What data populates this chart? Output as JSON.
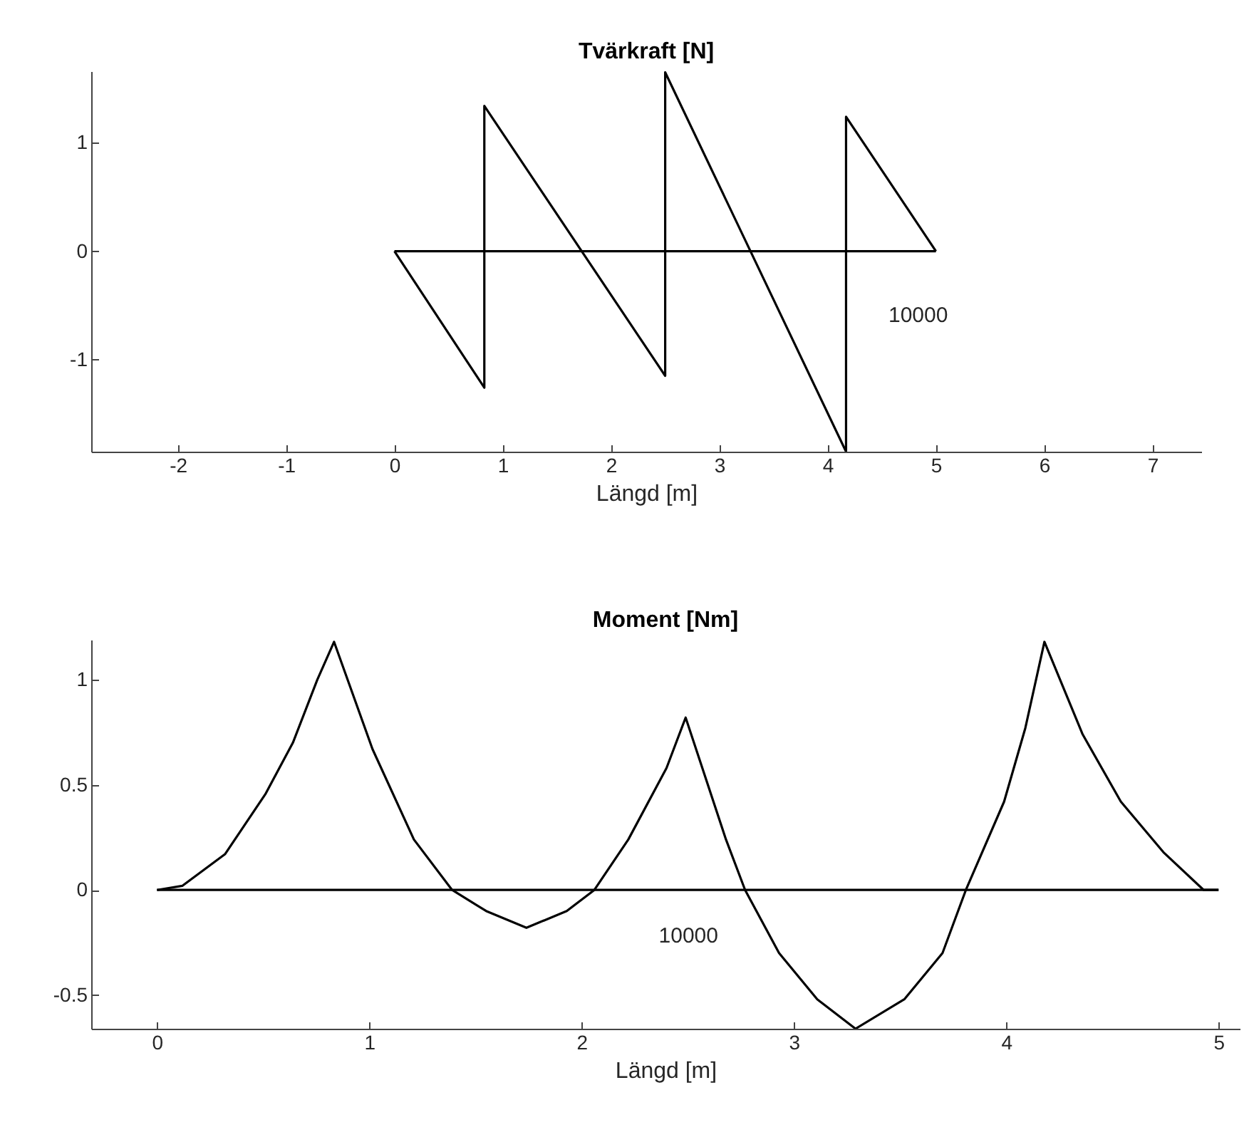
{
  "chart_data": [
    {
      "type": "line",
      "title": "Tvärkraft [N]",
      "xlabel": "Längd [m]",
      "xlim": [
        -2.8,
        7.45
      ],
      "xticks": [
        -2,
        -1,
        0,
        1,
        2,
        3,
        4,
        5,
        6,
        7
      ],
      "ylim": [
        -1.85,
        1.66
      ],
      "yticks": [
        -1,
        0,
        1
      ],
      "grid": false,
      "series": [
        {
          "color": "#000000",
          "x": [
            0,
            0.83,
            0.83,
            2.5,
            2.5,
            4.17,
            4.17,
            5
          ],
          "values": [
            0,
            -1.26,
            1.34,
            -1.15,
            1.65,
            -1.85,
            1.24,
            0
          ]
        },
        {
          "color": "#000000",
          "x": [
            0,
            5
          ],
          "values": [
            0,
            0
          ]
        }
      ],
      "annotations": [
        "10000"
      ]
    },
    {
      "type": "line",
      "title": "Moment [Nm]",
      "xlabel": "Längd [m]",
      "xlim": [
        -0.31,
        5.1
      ],
      "xticks": [
        0,
        1,
        2,
        3,
        4,
        5
      ],
      "ylim": [
        -0.66,
        1.19
      ],
      "yticks": [
        -0.5,
        0,
        0.5,
        1
      ],
      "grid": false,
      "series": [
        {
          "color": "#000000",
          "x": [
            0,
            0.12,
            0.32,
            0.51,
            0.64,
            0.755,
            0.834,
            1.015,
            1.21,
            1.39,
            1.55,
            1.74,
            1.93,
            2.06,
            2.22,
            2.4,
            2.49,
            2.68,
            2.77,
            2.93,
            3.11,
            3.29,
            3.52,
            3.7,
            3.81,
            3.99,
            4.09,
            4.18,
            4.36,
            4.54,
            4.74,
            4.93,
            5
          ],
          "values": [
            0,
            0.02,
            0.17,
            0.455,
            0.7,
            1.0,
            1.18,
            0.67,
            0.24,
            0,
            -0.1,
            -0.18,
            -0.1,
            0,
            0.24,
            0.58,
            0.82,
            0.24,
            0,
            -0.3,
            -0.52,
            -0.66,
            -0.52,
            -0.3,
            0,
            0.42,
            0.77,
            1.18,
            0.74,
            0.42,
            0.18,
            0,
            0
          ]
        },
        {
          "color": "#000000",
          "x": [
            0,
            5
          ],
          "values": [
            0,
            0
          ]
        }
      ],
      "annotations": [
        "10000"
      ]
    }
  ]
}
